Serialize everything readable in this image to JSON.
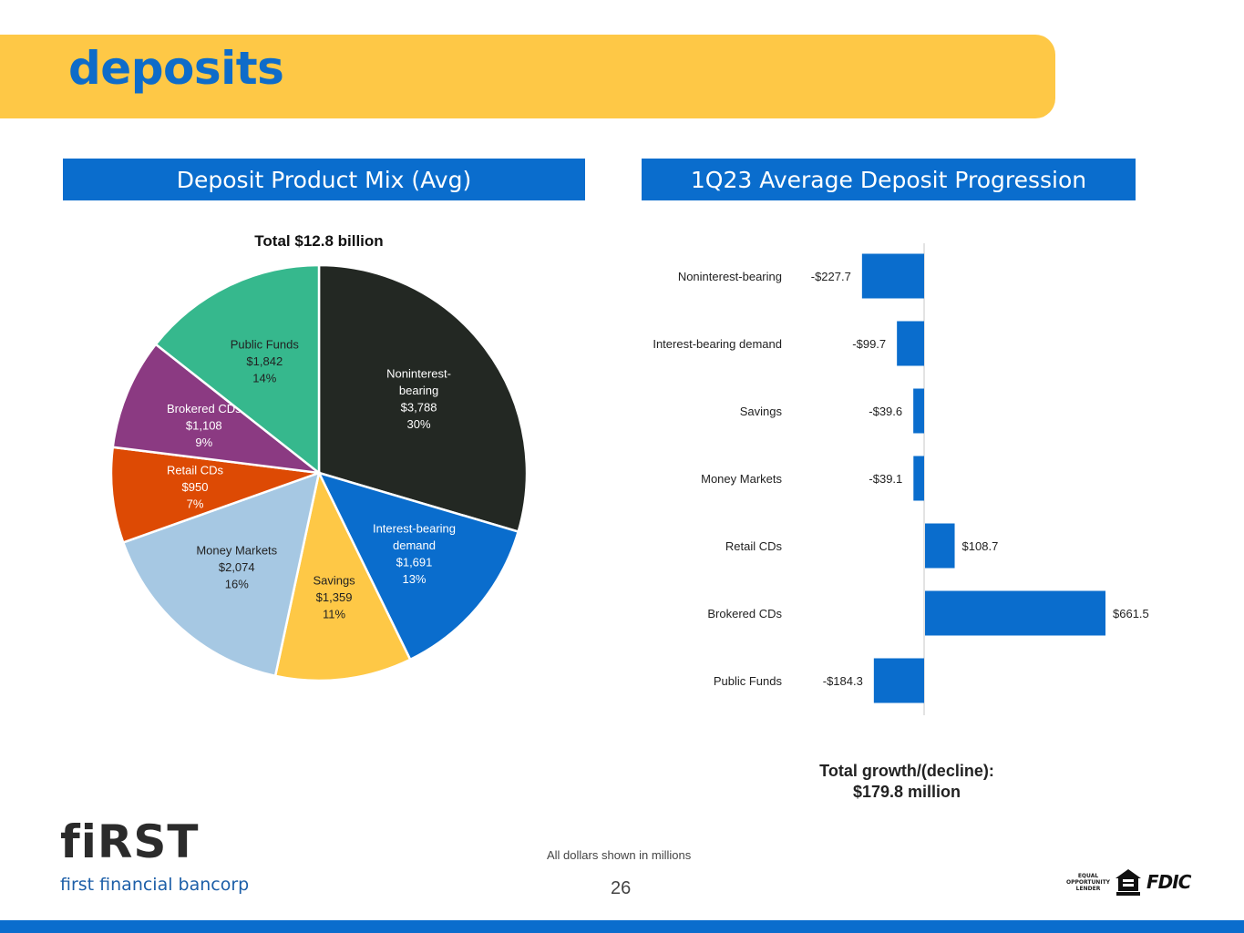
{
  "page": {
    "title": "deposits",
    "page_number": "26",
    "footnote": "All dollars shown in millions"
  },
  "colors": {
    "band_yellow": "#FEC846",
    "brand_blue": "#0A6DCD"
  },
  "left_panel": {
    "header": "Deposit Product Mix (Avg)"
  },
  "right_panel": {
    "header": "1Q23 Average Deposit Progression"
  },
  "chart_data": [
    {
      "type": "pie",
      "title": "Total $12.8 billion",
      "slices": [
        {
          "label_lines": [
            "Noninterest-",
            "bearing"
          ],
          "name": "Noninterest-bearing",
          "value": 3788,
          "value_label": "$3,788",
          "percent": 30,
          "percent_label": "30%",
          "color": "#232823",
          "text_color": "#ffffff"
        },
        {
          "label_lines": [
            "Interest-bearing",
            "demand"
          ],
          "name": "Interest-bearing demand",
          "value": 1691,
          "value_label": "$1,691",
          "percent": 13,
          "percent_label": "13%",
          "color": "#0A6DCD",
          "text_color": "#ffffff"
        },
        {
          "label_lines": [
            "Savings"
          ],
          "name": "Savings",
          "value": 1359,
          "value_label": "$1,359",
          "percent": 11,
          "percent_label": "11%",
          "color": "#FEC846",
          "text_color": "#222222"
        },
        {
          "label_lines": [
            "Money Markets"
          ],
          "name": "Money Markets",
          "value": 2074,
          "value_label": "$2,074",
          "percent": 16,
          "percent_label": "16%",
          "color": "#A6C8E3",
          "text_color": "#222222"
        },
        {
          "label_lines": [
            "Retail CDs"
          ],
          "name": "Retail CDs",
          "value": 950,
          "value_label": "$950",
          "percent": 7,
          "percent_label": "7%",
          "color": "#DD4A04",
          "text_color": "#ffffff"
        },
        {
          "label_lines": [
            "Brokered CDs"
          ],
          "name": "Brokered CDs",
          "value": 1108,
          "value_label": "$1,108",
          "percent": 9,
          "percent_label": "9%",
          "color": "#8B3A82",
          "text_color": "#ffffff"
        },
        {
          "label_lines": [
            "Public Funds"
          ],
          "name": "Public Funds",
          "value": 1842,
          "value_label": "$1,842",
          "percent": 14,
          "percent_label": "14%",
          "color": "#36B88D",
          "text_color": "#222222"
        }
      ]
    },
    {
      "type": "bar",
      "orientation": "horizontal",
      "title": "1Q23 Average Deposit Progression",
      "categories": [
        "Noninterest-bearing",
        "Interest-bearing demand",
        "Savings",
        "Money Markets",
        "Retail CDs",
        "Brokered CDs",
        "Public Funds"
      ],
      "values": [
        -227.7,
        -99.7,
        -39.6,
        -39.1,
        108.7,
        661.5,
        -184.3
      ],
      "value_labels": [
        "-$227.7",
        "-$99.7",
        "-$39.6",
        "-$39.1",
        "$108.7",
        "$661.5",
        "-$184.3"
      ],
      "xlim": [
        -330,
        780
      ],
      "bar_color": "#0A6DCD",
      "total_label": "Total growth/(decline):",
      "total_value": "$179.8 million"
    }
  ],
  "logo": {
    "word": "fiRST",
    "subtitle": "first financial bancorp"
  },
  "badges": {
    "equal_housing": [
      "EQUAL",
      "OPPORTUNITY",
      "LENDER"
    ],
    "fdic": "FDIC"
  }
}
